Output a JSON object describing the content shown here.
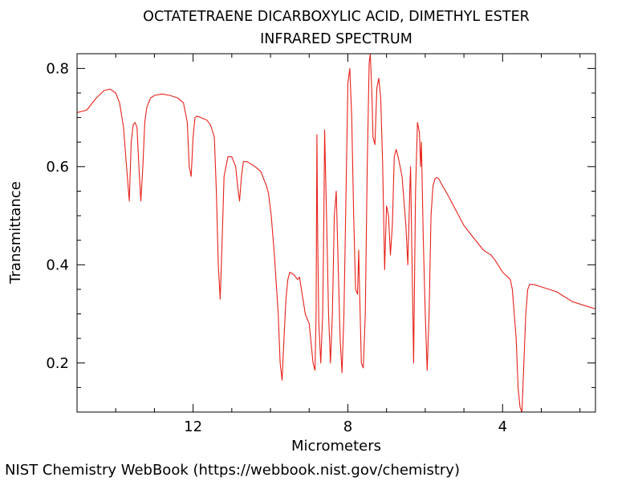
{
  "chart_data": {
    "type": "line",
    "title": "OCTATETRAENE DICARBOXYLIC ACID, DIMETHYL ESTER",
    "subtitle": "INFRARED SPECTRUM",
    "xlabel": "Micrometers",
    "ylabel": "Transmittance",
    "xlim": [
      15.0,
      1.6
    ],
    "ylim": [
      0.1,
      0.83
    ],
    "x_ticks": [
      12,
      8,
      4
    ],
    "y_ticks": [
      0.2,
      0.4,
      0.6,
      0.8
    ],
    "x_tick_labels": [
      "12",
      "8",
      "4"
    ],
    "y_tick_labels": [
      "0.2",
      "0.4",
      "0.6",
      "0.8"
    ],
    "grid": false,
    "line_color": "#e8211a",
    "series": [
      {
        "x": [
          15.0,
          14.75,
          14.5,
          14.3,
          14.15,
          14.0,
          13.9,
          13.8,
          13.72,
          13.65,
          13.6,
          13.55,
          13.5,
          13.45,
          13.4,
          13.35,
          13.3,
          13.25,
          13.2,
          13.15,
          13.1,
          13.05,
          13.0,
          12.8,
          12.6,
          12.4,
          12.25,
          12.15,
          12.1,
          12.05,
          12.0,
          11.95,
          11.9,
          11.8,
          11.65,
          11.55,
          11.45,
          11.4,
          11.35,
          11.3,
          11.25,
          11.2,
          11.1,
          11.0,
          10.9,
          10.85,
          10.8,
          10.75,
          10.7,
          10.6,
          10.4,
          10.25,
          10.1,
          10.05,
          9.98,
          9.9,
          9.8,
          9.75,
          9.7,
          9.65,
          9.6,
          9.55,
          9.5,
          9.4,
          9.3,
          9.25,
          9.2,
          9.1,
          9.0,
          8.9,
          8.85,
          8.82,
          8.8,
          8.78,
          8.75,
          8.7,
          8.65,
          8.62,
          8.6,
          8.55,
          8.5,
          8.45,
          8.4,
          8.35,
          8.3,
          8.25,
          8.2,
          8.15,
          8.1,
          8.0,
          7.95,
          7.9,
          7.85,
          7.8,
          7.75,
          7.72,
          7.7,
          7.65,
          7.6,
          7.55,
          7.5,
          7.45,
          7.42,
          7.38,
          7.35,
          7.3,
          7.25,
          7.2,
          7.15,
          7.1,
          7.05,
          7.0,
          6.95,
          6.9,
          6.85,
          6.8,
          6.75,
          6.7,
          6.6,
          6.5,
          6.45,
          6.4,
          6.38,
          6.35,
          6.32,
          6.3,
          6.25,
          6.2,
          6.15,
          6.12,
          6.1,
          6.05,
          6.0,
          5.95,
          5.9,
          5.85,
          5.8,
          5.75,
          5.7,
          5.65,
          5.55,
          5.4,
          5.2,
          5.0,
          4.8,
          4.5,
          4.3,
          4.2,
          4.0,
          3.8,
          3.75,
          3.65,
          3.6,
          3.55,
          3.5,
          3.45,
          3.4,
          3.35,
          3.3,
          3.2,
          3.0,
          2.8,
          2.6,
          2.4,
          2.2,
          2.0,
          1.8,
          1.6
        ],
        "y": [
          0.71,
          0.715,
          0.74,
          0.755,
          0.758,
          0.75,
          0.73,
          0.68,
          0.6,
          0.53,
          0.65,
          0.685,
          0.69,
          0.68,
          0.6,
          0.53,
          0.6,
          0.69,
          0.72,
          0.73,
          0.74,
          0.742,
          0.745,
          0.748,
          0.745,
          0.74,
          0.73,
          0.69,
          0.6,
          0.58,
          0.66,
          0.7,
          0.703,
          0.7,
          0.695,
          0.685,
          0.66,
          0.55,
          0.4,
          0.33,
          0.45,
          0.58,
          0.62,
          0.62,
          0.6,
          0.56,
          0.53,
          0.58,
          0.61,
          0.61,
          0.6,
          0.59,
          0.56,
          0.545,
          0.5,
          0.42,
          0.3,
          0.2,
          0.165,
          0.25,
          0.33,
          0.37,
          0.385,
          0.38,
          0.37,
          0.375,
          0.35,
          0.3,
          0.28,
          0.2,
          0.185,
          0.3,
          0.665,
          0.45,
          0.28,
          0.2,
          0.3,
          0.5,
          0.675,
          0.5,
          0.3,
          0.2,
          0.3,
          0.5,
          0.55,
          0.4,
          0.25,
          0.18,
          0.3,
          0.77,
          0.8,
          0.7,
          0.5,
          0.35,
          0.34,
          0.43,
          0.36,
          0.2,
          0.19,
          0.3,
          0.6,
          0.81,
          0.83,
          0.75,
          0.66,
          0.645,
          0.76,
          0.78,
          0.74,
          0.6,
          0.39,
          0.52,
          0.5,
          0.42,
          0.48,
          0.62,
          0.635,
          0.62,
          0.58,
          0.48,
          0.4,
          0.55,
          0.6,
          0.45,
          0.3,
          0.2,
          0.55,
          0.69,
          0.67,
          0.6,
          0.65,
          0.45,
          0.3,
          0.185,
          0.3,
          0.5,
          0.56,
          0.575,
          0.578,
          0.575,
          0.56,
          0.54,
          0.51,
          0.48,
          0.46,
          0.43,
          0.42,
          0.41,
          0.385,
          0.37,
          0.35,
          0.25,
          0.15,
          0.11,
          0.1,
          0.2,
          0.3,
          0.35,
          0.36,
          0.36,
          0.355,
          0.35,
          0.345,
          0.335,
          0.325,
          0.32,
          0.315,
          0.31
        ]
      }
    ]
  },
  "footer": "NIST Chemistry WebBook (https://webbook.nist.gov/chemistry)"
}
